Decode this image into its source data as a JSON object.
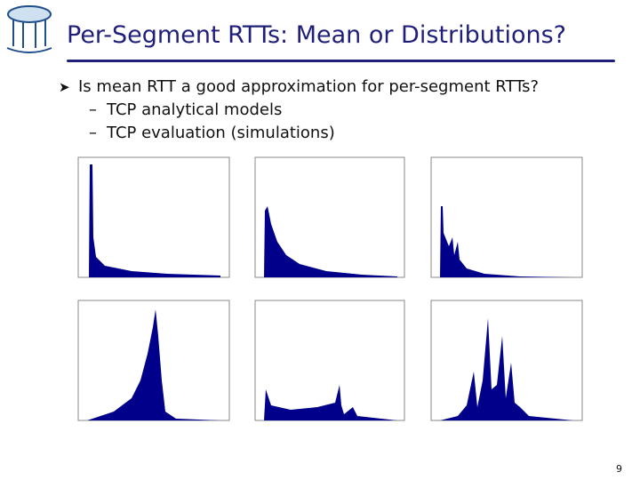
{
  "header": {
    "title": "Per-Segment RTTs: Mean or Distributions?"
  },
  "bullets": [
    {
      "text": "Is mean RTT a good approximation for per-segment RTTs?",
      "subitems": [
        "TCP analytical models",
        "TCP evaluation (simulations)"
      ]
    }
  ],
  "page_number": 9
}
